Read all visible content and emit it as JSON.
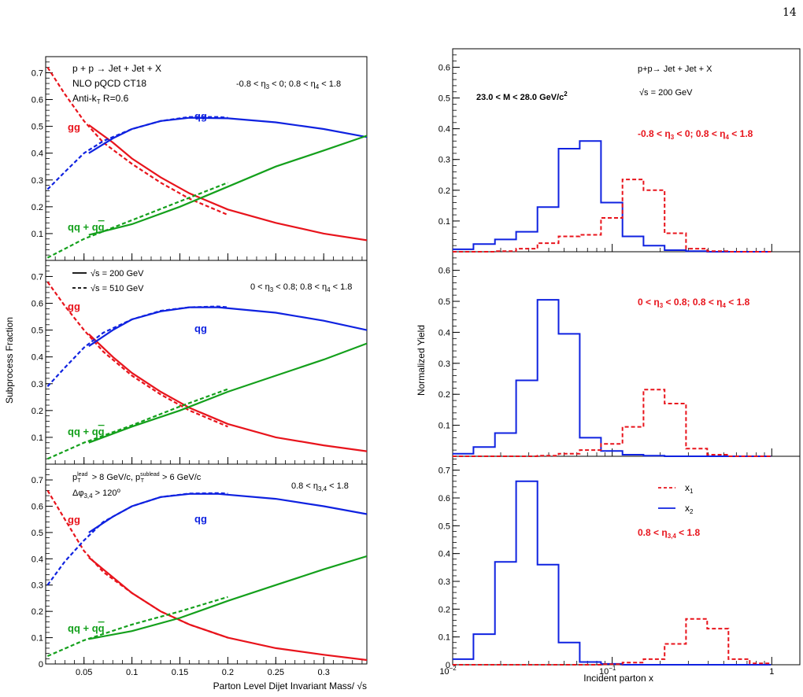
{
  "page": {
    "number": "14"
  },
  "chart_data": [
    {
      "type": "line",
      "xlabel": "Parton Level Dijet Invariant Mass/ √s",
      "ylabel": "Subprocess Fraction",
      "xlim": [
        0.01,
        0.345
      ],
      "xticks": [
        0.05,
        0.1,
        0.15,
        0.2,
        0.25,
        0.3
      ],
      "xtick_labels": [
        "0.05",
        "0.1",
        "0.15",
        "0.2",
        "0.25",
        "0.3"
      ],
      "grid": false,
      "panels": [
        {
          "ylim": [
            0,
            0.76
          ],
          "yticks": [
            0.1,
            0.2,
            0.3,
            0.4,
            0.5,
            0.6,
            0.7
          ],
          "ytick_labels": [
            "0.1",
            "0.2",
            "0.3",
            "0.4",
            "0.5",
            "0.6",
            "0.7"
          ],
          "text": [
            "p + p  → Jet + Jet + X",
            "NLO pQCD CT18",
            "Anti-k_T R=0.6"
          ],
          "eta_label": "-0.8 <  η_3 < 0; 0.8 <  η_4 < 1.8",
          "curve_labels": {
            "gg": "gg",
            "qg": "qg",
            "qq": "qq + qq̄"
          },
          "series": [
            {
              "name": "gg",
              "style": "solid",
              "color": "#e8141c",
              "x": [
                0.055,
                0.08,
                0.1,
                0.13,
                0.16,
                0.2,
                0.25,
                0.3,
                0.345
              ],
              "y": [
                0.505,
                0.44,
                0.38,
                0.31,
                0.25,
                0.19,
                0.14,
                0.1,
                0.075
              ]
            },
            {
              "name": "gg",
              "style": "dashed",
              "color": "#e8141c",
              "x": [
                0.012,
                0.03,
                0.05,
                0.07,
                0.1,
                0.13,
                0.16,
                0.2
              ],
              "y": [
                0.72,
                0.62,
                0.52,
                0.44,
                0.36,
                0.29,
                0.23,
                0.17
              ]
            },
            {
              "name": "qg",
              "style": "solid",
              "color": "#0f22e0",
              "x": [
                0.055,
                0.08,
                0.1,
                0.13,
                0.16,
                0.2,
                0.25,
                0.3,
                0.345
              ],
              "y": [
                0.4,
                0.455,
                0.49,
                0.52,
                0.532,
                0.53,
                0.515,
                0.49,
                0.46
              ]
            },
            {
              "name": "qg",
              "style": "dashed",
              "color": "#0f22e0",
              "x": [
                0.012,
                0.03,
                0.05,
                0.07,
                0.1,
                0.13,
                0.16,
                0.19,
                0.2
              ],
              "y": [
                0.265,
                0.33,
                0.4,
                0.445,
                0.49,
                0.52,
                0.535,
                0.535,
                0.532
              ]
            },
            {
              "name": "qq + qq̄",
              "style": "solid",
              "color": "#14a01c",
              "x": [
                0.055,
                0.1,
                0.15,
                0.2,
                0.25,
                0.3,
                0.345
              ],
              "y": [
                0.095,
                0.135,
                0.2,
                0.275,
                0.35,
                0.41,
                0.465
              ]
            },
            {
              "name": "qq + qq̄",
              "style": "dashed",
              "color": "#14a01c",
              "x": [
                0.012,
                0.05,
                0.1,
                0.15,
                0.2
              ],
              "y": [
                0.01,
                0.08,
                0.15,
                0.22,
                0.29
              ]
            }
          ]
        },
        {
          "ylim": [
            0,
            0.76
          ],
          "yticks": [
            0.1,
            0.2,
            0.3,
            0.4,
            0.5,
            0.6,
            0.7
          ],
          "ytick_labels": [
            "0.1",
            "0.2",
            "0.3",
            "0.4",
            "0.5",
            "0.6",
            "0.7"
          ],
          "text": [],
          "legend": [
            "√s = 200 GeV",
            "√s = 510 GeV"
          ],
          "eta_label": "0 <  η_3 < 0.8; 0.8 <  η_4 < 1.8",
          "curve_labels": {
            "gg": "gg",
            "qg": "qg",
            "qq": "qq + qq̄"
          },
          "series": [
            {
              "name": "gg",
              "style": "solid",
              "color": "#e8141c",
              "x": [
                0.055,
                0.08,
                0.1,
                0.13,
                0.16,
                0.2,
                0.25,
                0.3,
                0.345
              ],
              "y": [
                0.485,
                0.4,
                0.34,
                0.27,
                0.21,
                0.15,
                0.1,
                0.07,
                0.048
              ]
            },
            {
              "name": "gg",
              "style": "dashed",
              "color": "#e8141c",
              "x": [
                0.012,
                0.03,
                0.05,
                0.07,
                0.1,
                0.13,
                0.16,
                0.2
              ],
              "y": [
                0.68,
                0.59,
                0.5,
                0.42,
                0.33,
                0.26,
                0.2,
                0.14
              ]
            },
            {
              "name": "qg",
              "style": "solid",
              "color": "#0f22e0",
              "x": [
                0.055,
                0.08,
                0.1,
                0.13,
                0.16,
                0.19,
                0.25,
                0.3,
                0.345
              ],
              "y": [
                0.44,
                0.5,
                0.54,
                0.57,
                0.585,
                0.585,
                0.565,
                0.535,
                0.5
              ]
            },
            {
              "name": "qg",
              "style": "dashed",
              "color": "#0f22e0",
              "x": [
                0.012,
                0.03,
                0.05,
                0.07,
                0.1,
                0.13,
                0.16,
                0.19,
                0.2
              ],
              "y": [
                0.29,
                0.36,
                0.435,
                0.49,
                0.54,
                0.572,
                0.585,
                0.588,
                0.585
              ]
            },
            {
              "name": "qq + qq̄",
              "style": "solid",
              "color": "#14a01c",
              "x": [
                0.055,
                0.1,
                0.15,
                0.2,
                0.25,
                0.3,
                0.345
              ],
              "y": [
                0.08,
                0.14,
                0.2,
                0.27,
                0.33,
                0.39,
                0.45
              ]
            },
            {
              "name": "qq + qq̄",
              "style": "dashed",
              "color": "#14a01c",
              "x": [
                0.012,
                0.05,
                0.1,
                0.15,
                0.2
              ],
              "y": [
                0.02,
                0.08,
                0.145,
                0.215,
                0.28
              ]
            }
          ]
        },
        {
          "ylim": [
            0,
            0.76
          ],
          "yticks": [
            0,
            0.1,
            0.2,
            0.3,
            0.4,
            0.5,
            0.6,
            0.7
          ],
          "ytick_labels": [
            "0",
            "0.1",
            "0.2",
            "0.3",
            "0.4",
            "0.5",
            "0.6",
            "0.7"
          ],
          "text": [
            "p_T^lead > 8 GeV/c, p_T^sublead > 6 GeV/c",
            "Δφ_3,4 > 120°"
          ],
          "eta_label": "0.8 <  η_3,4 < 1.8",
          "curve_labels": {
            "gg": "gg",
            "qg": "qg",
            "qq": "qq + qq̄"
          },
          "series": [
            {
              "name": "gg",
              "style": "solid",
              "color": "#e8141c",
              "x": [
                0.055,
                0.08,
                0.1,
                0.13,
                0.16,
                0.2,
                0.25,
                0.3,
                0.345
              ],
              "y": [
                0.405,
                0.33,
                0.27,
                0.2,
                0.15,
                0.1,
                0.06,
                0.035,
                0.015
              ]
            },
            {
              "name": "gg",
              "style": "dashed",
              "color": "#e8141c",
              "x": [
                0.012,
                0.03,
                0.05,
                0.07,
                0.1,
                0.13,
                0.16,
                0.2
              ],
              "y": [
                0.66,
                0.55,
                0.43,
                0.35,
                0.27,
                0.2,
                0.15,
                0.1
              ]
            },
            {
              "name": "qg",
              "style": "solid",
              "color": "#0f22e0",
              "x": [
                0.055,
                0.08,
                0.1,
                0.13,
                0.16,
                0.19,
                0.25,
                0.3,
                0.345
              ],
              "y": [
                0.5,
                0.56,
                0.6,
                0.635,
                0.647,
                0.647,
                0.628,
                0.6,
                0.57
              ]
            },
            {
              "name": "qg",
              "style": "dashed",
              "color": "#0f22e0",
              "x": [
                0.012,
                0.03,
                0.05,
                0.07,
                0.1,
                0.13,
                0.16,
                0.19,
                0.2
              ],
              "y": [
                0.3,
                0.39,
                0.47,
                0.54,
                0.6,
                0.635,
                0.648,
                0.65,
                0.648
              ]
            },
            {
              "name": "qq + qq̄",
              "style": "solid",
              "color": "#14a01c",
              "x": [
                0.055,
                0.1,
                0.15,
                0.2,
                0.25,
                0.3,
                0.345
              ],
              "y": [
                0.095,
                0.125,
                0.175,
                0.24,
                0.3,
                0.36,
                0.41
              ]
            },
            {
              "name": "qq + qq̄",
              "style": "dashed",
              "color": "#14a01c",
              "x": [
                0.012,
                0.05,
                0.1,
                0.15,
                0.2
              ],
              "y": [
                0.03,
                0.09,
                0.15,
                0.2,
                0.255
              ]
            }
          ]
        }
      ]
    },
    {
      "type": "histogram",
      "xlabel": "Incident parton x",
      "ylabel": "Normalized Yield",
      "xscale": "log",
      "xlim": [
        0.01,
        1.5
      ],
      "xtick_labels": [
        "10^-2",
        "10^-1",
        "1"
      ],
      "grid": false,
      "bin_edges": [
        0.01,
        0.0135,
        0.0184,
        0.025,
        0.034,
        0.0461,
        0.0626,
        0.085,
        0.116,
        0.157,
        0.213,
        0.29,
        0.394,
        0.535,
        0.727,
        0.988
      ],
      "legend": [
        "x_1",
        "x_2"
      ],
      "panels": [
        {
          "ylim": [
            0,
            0.66
          ],
          "yticks": [
            0.1,
            0.2,
            0.3,
            0.4,
            0.5,
            0.6
          ],
          "ytick_labels": [
            "0.1",
            "0.2",
            "0.3",
            "0.4",
            "0.5",
            "0.6"
          ],
          "text": [
            "p+p→ Jet + Jet + X",
            "√s = 200 GeV"
          ],
          "mass_label": "23.0 < M < 28.0 GeV/c²",
          "eta_label": "-0.8 <  η_3 < 0; 0.8 <  η_4 < 1.8",
          "series": [
            {
              "name": "x_2",
              "style": "solid",
              "color": "#0f22e0",
              "values": [
                0.008,
                0.025,
                0.04,
                0.065,
                0.145,
                0.335,
                0.36,
                0.16,
                0.05,
                0.02,
                0.005,
                0.002,
                0.0,
                0.0,
                0.0
              ]
            },
            {
              "name": "x_1",
              "style": "dashed",
              "color": "#e8141c",
              "values": [
                0.0,
                0.0,
                0.002,
                0.01,
                0.028,
                0.05,
                0.055,
                0.11,
                0.235,
                0.2,
                0.06,
                0.01,
                0.002,
                0.0,
                0.0
              ]
            }
          ]
        },
        {
          "ylim": [
            0,
            0.66
          ],
          "yticks": [
            0.1,
            0.2,
            0.3,
            0.4,
            0.5,
            0.6
          ],
          "ytick_labels": [
            "0.1",
            "0.2",
            "0.3",
            "0.4",
            "0.5",
            "0.6"
          ],
          "text": [],
          "eta_label": "0 <  η_3 < 0.8; 0.8 <  η_4 < 1.8",
          "series": [
            {
              "name": "x_2",
              "style": "solid",
              "color": "#0f22e0",
              "values": [
                0.008,
                0.03,
                0.075,
                0.245,
                0.505,
                0.395,
                0.06,
                0.017,
                0.005,
                0.002,
                0.0,
                0.0,
                0.0,
                0.0,
                0.0
              ]
            },
            {
              "name": "x_1",
              "style": "dashed",
              "color": "#e8141c",
              "values": [
                0.0,
                0.0,
                0.0,
                0.0,
                0.002,
                0.008,
                0.02,
                0.04,
                0.095,
                0.215,
                0.17,
                0.025,
                0.005,
                0.0,
                0.0
              ]
            }
          ]
        },
        {
          "ylim": [
            0,
            0.75
          ],
          "yticks": [
            0,
            0.1,
            0.2,
            0.3,
            0.4,
            0.5,
            0.6,
            0.7
          ],
          "ytick_labels": [
            "0",
            "0.1",
            "0.2",
            "0.3",
            "0.4",
            "0.5",
            "0.6",
            "0.7"
          ],
          "text": [],
          "eta_label": "0.8 <  η_3,4 < 1.8",
          "series": [
            {
              "name": "x_2",
              "style": "solid",
              "color": "#0f22e0",
              "values": [
                0.02,
                0.11,
                0.37,
                0.66,
                0.36,
                0.08,
                0.01,
                0.003,
                0.0,
                0.0,
                0.0,
                0.0,
                0.0,
                0.0,
                0.0
              ]
            },
            {
              "name": "x_1",
              "style": "dashed",
              "color": "#e8141c",
              "values": [
                0.0,
                0.0,
                0.0,
                0.0,
                0.0,
                0.0,
                0.0,
                0.002,
                0.008,
                0.02,
                0.075,
                0.165,
                0.13,
                0.02,
                0.005
              ]
            }
          ]
        }
      ]
    }
  ]
}
